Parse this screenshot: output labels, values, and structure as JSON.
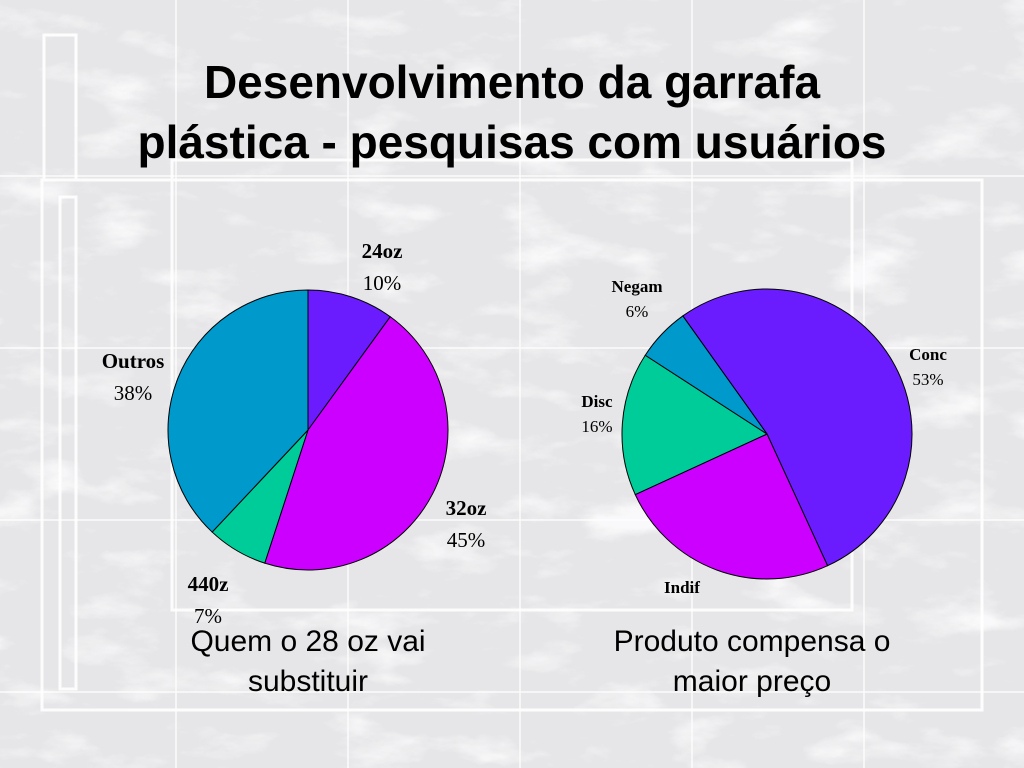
{
  "title": {
    "line1": "Desenvolvimento da garrafa",
    "line2": "plástica - pesquisas com usuários"
  },
  "captions": {
    "left": "Quem o 28 oz vai substituir",
    "right": "Produto compensa o maior preço"
  },
  "colors": {
    "blue": "#0099cc",
    "violet": "#6a1cff",
    "magenta": "#cc00ff",
    "green": "#00cc99"
  },
  "chart_data": [
    {
      "type": "pie",
      "slices": [
        {
          "label": "24oz",
          "value": 10,
          "display": "10%",
          "color": "#6a1cff"
        },
        {
          "label": "32oz",
          "value": 45,
          "display": "45%",
          "color": "#cc00ff"
        },
        {
          "label": "440z",
          "value": 7,
          "display": "7%",
          "color": "#00cc99"
        },
        {
          "label": "Outros",
          "value": 38,
          "display": "38%",
          "color": "#0099cc"
        }
      ]
    },
    {
      "type": "pie",
      "slices": [
        {
          "label": "Conc",
          "value": 53,
          "display": "53%",
          "color": "#6a1cff"
        },
        {
          "label": "Indif",
          "value": 25,
          "display": "",
          "color": "#cc00ff"
        },
        {
          "label": "Disc",
          "value": 16,
          "display": "16%",
          "color": "#00cc99"
        },
        {
          "label": "Negam",
          "value": 6,
          "display": "6%",
          "color": "#0099cc"
        }
      ]
    }
  ]
}
